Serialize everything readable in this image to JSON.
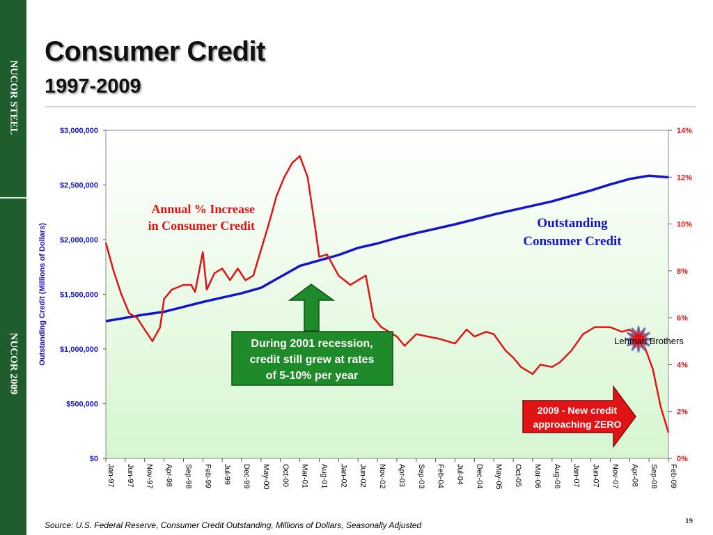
{
  "sidebar": {
    "top_text": "NUCOR STEEL",
    "bottom_text": "NUCOR 2009"
  },
  "slide": {
    "title": "Consumer Credit",
    "subtitle": "1997-2009",
    "source": "Source: U.S. Federal Reserve, Consumer Credit Outstanding, Millions of Dollars, Seasonally Adjusted",
    "page_number": "19"
  },
  "colors": {
    "sidebar": "#1f5c2e",
    "outstanding": "#1414c8",
    "annual_pct": "#e01414",
    "plot_bg_top": "#ffffff",
    "plot_bg_bottom": "#d6f6d0",
    "arrow_green": "#1f8a2a",
    "callout_red": "#e01414"
  },
  "chart_data": {
    "type": "line",
    "ylabel": "Outstanding Credit (Millions of Dollars)",
    "ylim": [
      0,
      3000000
    ],
    "yticks": [
      "$0",
      "$500,000",
      "$1,000,000",
      "$1,500,000",
      "$2,000,000",
      "$2,500,000",
      "$3,000,000"
    ],
    "y2lim": [
      0,
      14
    ],
    "y2ticks": [
      "0%",
      "2%",
      "4%",
      "6%",
      "8%",
      "10%",
      "12%",
      "14%"
    ],
    "xticks": [
      "Jan-97",
      "Jun-97",
      "Nov-97",
      "Apr-98",
      "Sep-98",
      "Feb-99",
      "Jul-99",
      "Dec-99",
      "May-00",
      "Oct-00",
      "Mar-01",
      "Aug-01",
      "Jan-02",
      "Jun-02",
      "Nov-02",
      "Apr-03",
      "Sep-03",
      "Feb-04",
      "Jul-04",
      "Dec-04",
      "May-05",
      "Oct-05",
      "Mar-06",
      "Aug-06",
      "Jan-07",
      "Jun-07",
      "Nov-07",
      "Apr-08",
      "Sep-08",
      "Feb-09"
    ],
    "grid": false,
    "series": [
      {
        "name": "Outstanding Consumer Credit",
        "axis": "left",
        "x": [
          "Jan-97",
          "Jun-97",
          "Nov-97",
          "Apr-98",
          "Sep-98",
          "Feb-99",
          "Jul-99",
          "Dec-99",
          "May-00",
          "Oct-00",
          "Mar-01",
          "Aug-01",
          "Jan-02",
          "Jun-02",
          "Nov-02",
          "Apr-03",
          "Sep-03",
          "Feb-04",
          "Jul-04",
          "Dec-04",
          "May-05",
          "Oct-05",
          "Mar-06",
          "Aug-06",
          "Jan-07",
          "Jun-07",
          "Nov-07",
          "Apr-08",
          "Sep-08",
          "Feb-09"
        ],
        "values": [
          1255000,
          1285000,
          1315000,
          1340000,
          1385000,
          1430000,
          1470000,
          1510000,
          1560000,
          1660000,
          1760000,
          1810000,
          1860000,
          1925000,
          1965000,
          2015000,
          2060000,
          2100000,
          2140000,
          2185000,
          2230000,
          2270000,
          2310000,
          2350000,
          2400000,
          2450000,
          2505000,
          2555000,
          2585000,
          2570000
        ]
      },
      {
        "name": "Annual % Increase in Consumer Credit",
        "axis": "right",
        "x": [
          "Jan-97",
          "Mar-97",
          "May-97",
          "Jul-97",
          "Sep-97",
          "Nov-97",
          "Jan-98",
          "Mar-98",
          "Apr-98",
          "Jun-98",
          "Sep-98",
          "Nov-98",
          "Dec-98",
          "Feb-99",
          "Mar-99",
          "May-99",
          "Jul-99",
          "Sep-99",
          "Nov-99",
          "Jan-00",
          "Mar-00",
          "May-00",
          "Jul-00",
          "Sep-00",
          "Nov-00",
          "Jan-01",
          "Mar-01",
          "May-01",
          "Jul-01",
          "Aug-01",
          "Oct-01",
          "Jan-02",
          "Apr-02",
          "Jun-02",
          "Aug-02",
          "Oct-02",
          "Dec-02",
          "Apr-03",
          "Jun-03",
          "Sep-03",
          "Dec-03",
          "Mar-04",
          "Jul-04",
          "Oct-04",
          "Dec-04",
          "Mar-05",
          "May-05",
          "Aug-05",
          "Oct-05",
          "Dec-05",
          "Mar-06",
          "May-06",
          "Aug-06",
          "Oct-06",
          "Jan-07",
          "Apr-07",
          "Jul-07",
          "Nov-07",
          "Feb-08",
          "Apr-08",
          "Jun-08",
          "Aug-08",
          "Oct-08",
          "Dec-08",
          "Feb-09"
        ],
        "values": [
          9.2,
          8.0,
          7.0,
          6.2,
          6.0,
          5.5,
          5.0,
          5.6,
          6.8,
          7.2,
          7.4,
          7.4,
          7.1,
          8.8,
          7.2,
          7.9,
          8.1,
          7.6,
          8.1,
          7.6,
          7.8,
          8.9,
          10.0,
          11.2,
          12.0,
          12.6,
          12.9,
          12.0,
          9.8,
          8.6,
          8.7,
          7.8,
          7.4,
          7.6,
          7.8,
          6.0,
          5.6,
          5.2,
          4.8,
          5.3,
          5.2,
          5.1,
          4.9,
          5.5,
          5.2,
          5.4,
          5.3,
          4.6,
          4.3,
          3.9,
          3.6,
          4.0,
          3.9,
          4.1,
          4.6,
          5.3,
          5.6,
          5.6,
          5.4,
          5.5,
          5.2,
          4.7,
          3.8,
          2.2,
          1.1
        ]
      }
    ]
  },
  "annotations": {
    "annual_label_line1": "Annual % Increase",
    "annual_label_line2": "in Consumer Credit",
    "outstanding_label_line1": "Outstanding",
    "outstanding_label_line2": "Consumer Credit",
    "lehman": "Lehman Brothers",
    "recession_line1": "During 2001 recession,",
    "recession_line2": "credit still grew at rates",
    "recession_line3": "of 5-10% per year",
    "zero_line1": "2009 - New credit",
    "zero_line2": "approaching ZERO"
  }
}
